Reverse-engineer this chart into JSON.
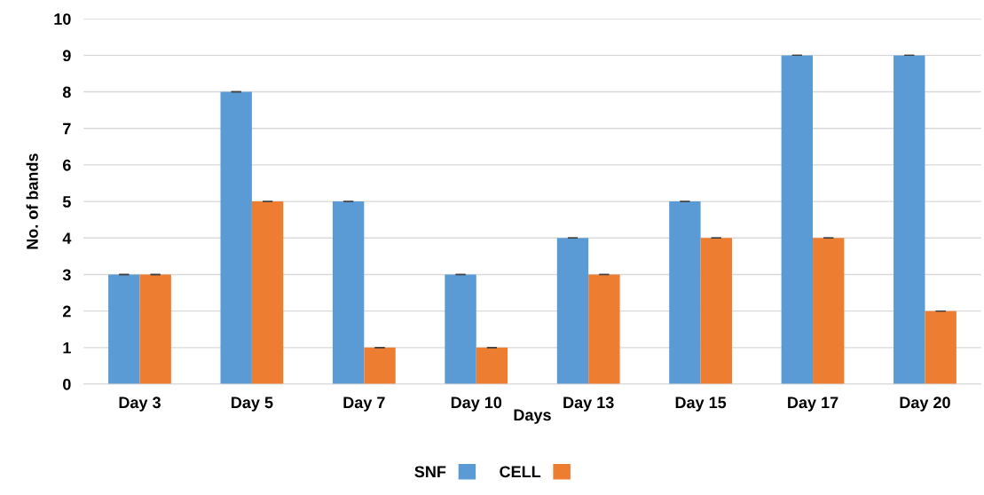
{
  "chart_data": {
    "type": "bar",
    "xlabel": "Days",
    "ylabel": "No. of bands",
    "categories": [
      "Day 3",
      "Day 5",
      "Day 7",
      "Day 10",
      "Day 13",
      "Day 15",
      "Day 17",
      "Day 20"
    ],
    "series": [
      {
        "name": "SNF",
        "color": "#5b9bd5",
        "values": [
          3,
          8,
          5,
          3,
          4,
          5,
          9,
          9
        ],
        "errors": [
          0,
          0,
          0,
          0,
          0,
          0,
          0,
          0
        ]
      },
      {
        "name": "CELL",
        "color": "#ed7d31",
        "values": [
          3,
          5,
          1,
          1,
          3,
          4,
          4,
          2
        ],
        "errors": [
          0,
          0,
          0,
          0,
          0,
          0,
          0,
          0
        ]
      }
    ],
    "ylim": [
      0,
      10
    ],
    "yticks": [
      0,
      1,
      2,
      3,
      4,
      5,
      6,
      7,
      8,
      9,
      10
    ],
    "grid": "y",
    "legend": "bottom"
  }
}
